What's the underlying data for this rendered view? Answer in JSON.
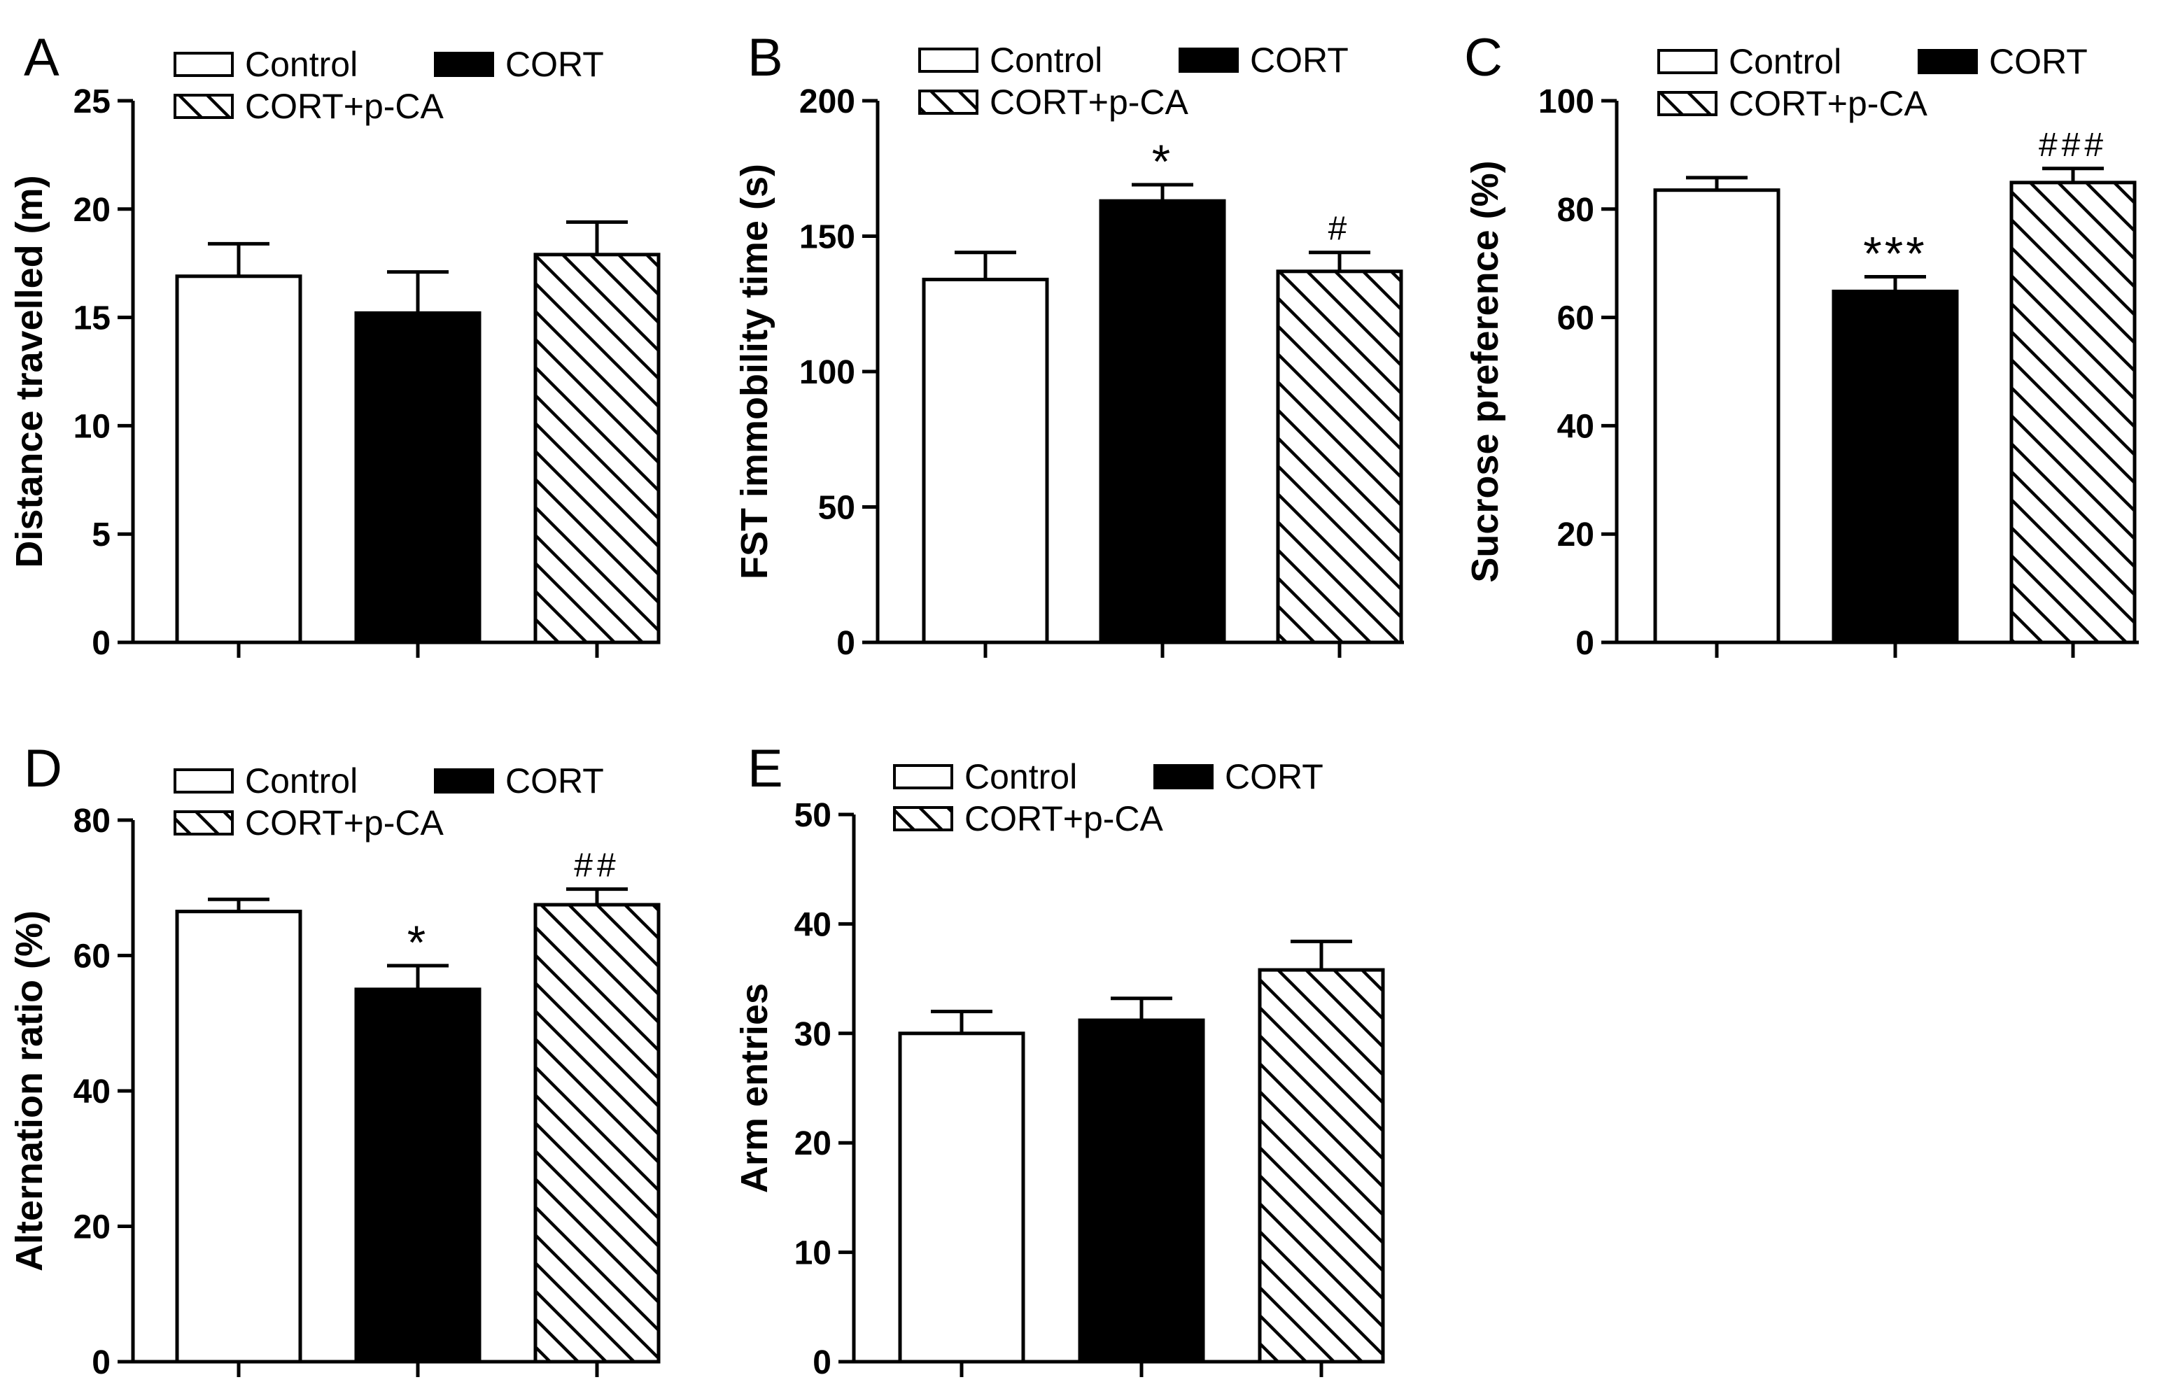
{
  "legend": {
    "entries": [
      {
        "label": "Control",
        "style": "open"
      },
      {
        "label": "CORT",
        "style": "solid"
      },
      {
        "label": "CORT+p-CA",
        "style": "hatched"
      }
    ]
  },
  "colors": {
    "ink": "#000000",
    "open_fill": "#ffffff",
    "solid_fill": "#000000"
  },
  "chart_data": [
    {
      "type": "bar",
      "panel_label": "A",
      "ylabel": "Distance travelled (m)",
      "ylim": [
        0,
        25
      ],
      "yticks": [
        0,
        5,
        10,
        15,
        20,
        25
      ],
      "categories": [
        "Control",
        "CORT",
        "CORT+p-CA"
      ],
      "values": [
        16.9,
        15.2,
        17.9
      ],
      "errors": [
        1.5,
        1.9,
        1.5
      ],
      "annotations": [
        "",
        "",
        ""
      ],
      "legend_position": "top"
    },
    {
      "type": "bar",
      "panel_label": "B",
      "ylabel": "FST immobility time (s)",
      "ylim": [
        0,
        200
      ],
      "yticks": [
        0,
        50,
        100,
        150,
        200
      ],
      "categories": [
        "Control",
        "CORT",
        "CORT+p-CA"
      ],
      "values": [
        134,
        163,
        137
      ],
      "errors": [
        10,
        6,
        7
      ],
      "annotations": [
        "",
        "*",
        "#"
      ],
      "legend_position": "top"
    },
    {
      "type": "bar",
      "panel_label": "C",
      "ylabel": "Sucrose preference (%)",
      "ylim": [
        0,
        100
      ],
      "yticks": [
        0,
        20,
        40,
        60,
        80,
        100
      ],
      "categories": [
        "Control",
        "CORT",
        "CORT+p-CA"
      ],
      "values": [
        83.5,
        64.8,
        84.9
      ],
      "errors": [
        2.3,
        2.7,
        2.6
      ],
      "annotations": [
        "",
        "***",
        "###"
      ],
      "legend_position": "top"
    },
    {
      "type": "bar",
      "panel_label": "D",
      "ylabel": "Alternation ratio (%)",
      "ylim": [
        0,
        80
      ],
      "yticks": [
        0,
        20,
        40,
        60,
        80
      ],
      "categories": [
        "Control",
        "CORT",
        "CORT+p-CA"
      ],
      "values": [
        66.5,
        55.0,
        67.5
      ],
      "errors": [
        1.8,
        3.5,
        2.3
      ],
      "annotations": [
        "",
        "*",
        "##"
      ],
      "legend_position": "top"
    },
    {
      "type": "bar",
      "panel_label": "E",
      "ylabel": "Arm entries",
      "ylim": [
        0,
        50
      ],
      "yticks": [
        0,
        10,
        20,
        30,
        40,
        50
      ],
      "categories": [
        "Control",
        "CORT",
        "CORT+p-CA"
      ],
      "values": [
        30.0,
        31.2,
        35.8
      ],
      "errors": [
        2.0,
        2.0,
        2.6
      ],
      "annotations": [
        "",
        "",
        ""
      ],
      "legend_position": "top"
    }
  ]
}
